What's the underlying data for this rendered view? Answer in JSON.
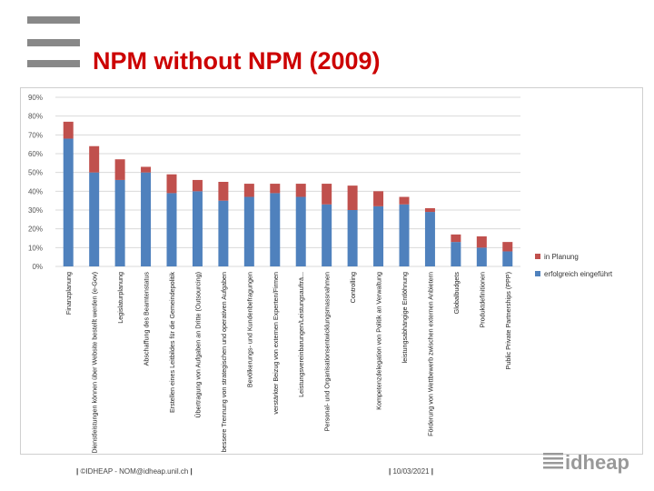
{
  "slide": {
    "title": "NPM without NPM (2009)",
    "footer_left": "©IDHEAP - NOM@idheap.unil.ch",
    "footer_date": "10/03/2021",
    "brand": "idheap"
  },
  "colors": {
    "planned": "#c0504d",
    "implemented": "#4f81bd",
    "title": "#cc0000",
    "logo": "#888888"
  },
  "chart_data": {
    "type": "bar",
    "stacked": true,
    "categories": [
      "Finanzplanung",
      "Dienstleistungen können über Website bestellt werden (e-Gov)",
      "Legislaturplanung",
      "Abschaffung des Beamtenstatus",
      "Erstellen eines Leitbildes für die Gemeindepolitik",
      "Übertragung von Aufgaben an Dritte (Outsourcing)",
      "bessere Trennung von strategischen und operativen Aufgaben",
      "Bevölkerungs- und Kundenbefragungen",
      "verstärkter Beizug von externen Experten/Firmen",
      "Leistungsvereinbarungen/Leistungsaufträ...",
      "Personal- und Organisationsentwicklungsmassnahmen",
      "Controlling",
      "Kompetenzdelegation von Politik an Verwaltung",
      "leistungsabhängige Entlöhnung",
      "Förderung von Wettbewerb zwischen externen Anbietern",
      "Globalbudgets",
      "Produktdefinitionen",
      "Public Private Partnerships (PPP)"
    ],
    "series": [
      {
        "name": "erfolgreich eingeführt",
        "values": [
          68,
          50,
          46,
          50,
          39,
          40,
          35,
          37,
          39,
          37,
          33,
          30,
          32,
          33,
          29,
          13,
          10,
          8
        ]
      },
      {
        "name": "in Planung",
        "values": [
          9,
          14,
          11,
          3,
          10,
          6,
          10,
          7,
          5,
          7,
          11,
          13,
          8,
          4,
          2,
          4,
          6,
          5
        ]
      }
    ],
    "yticks": [
      "0%",
      "10%",
      "20%",
      "30%",
      "40%",
      "50%",
      "60%",
      "70%",
      "80%",
      "90%"
    ],
    "ylim": [
      0,
      90
    ],
    "legend_position": "right",
    "grid": true
  }
}
